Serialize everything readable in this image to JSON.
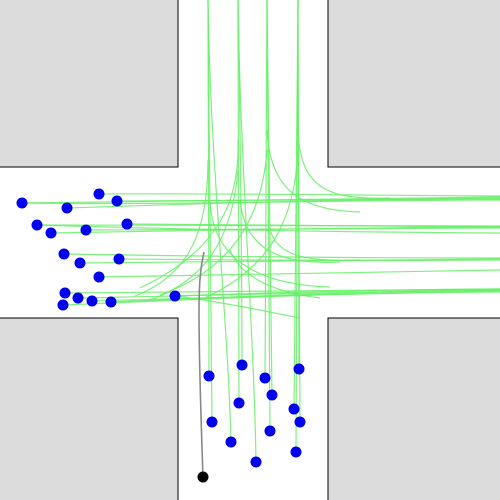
{
  "colors": {
    "background": "#ffffff",
    "block_fill": "#dcdcdc",
    "block_stroke": "#000000",
    "trajectory": "#66ee66",
    "ego_path": "#888888",
    "agent": "#0000ee",
    "ego": "#000000"
  }
}
